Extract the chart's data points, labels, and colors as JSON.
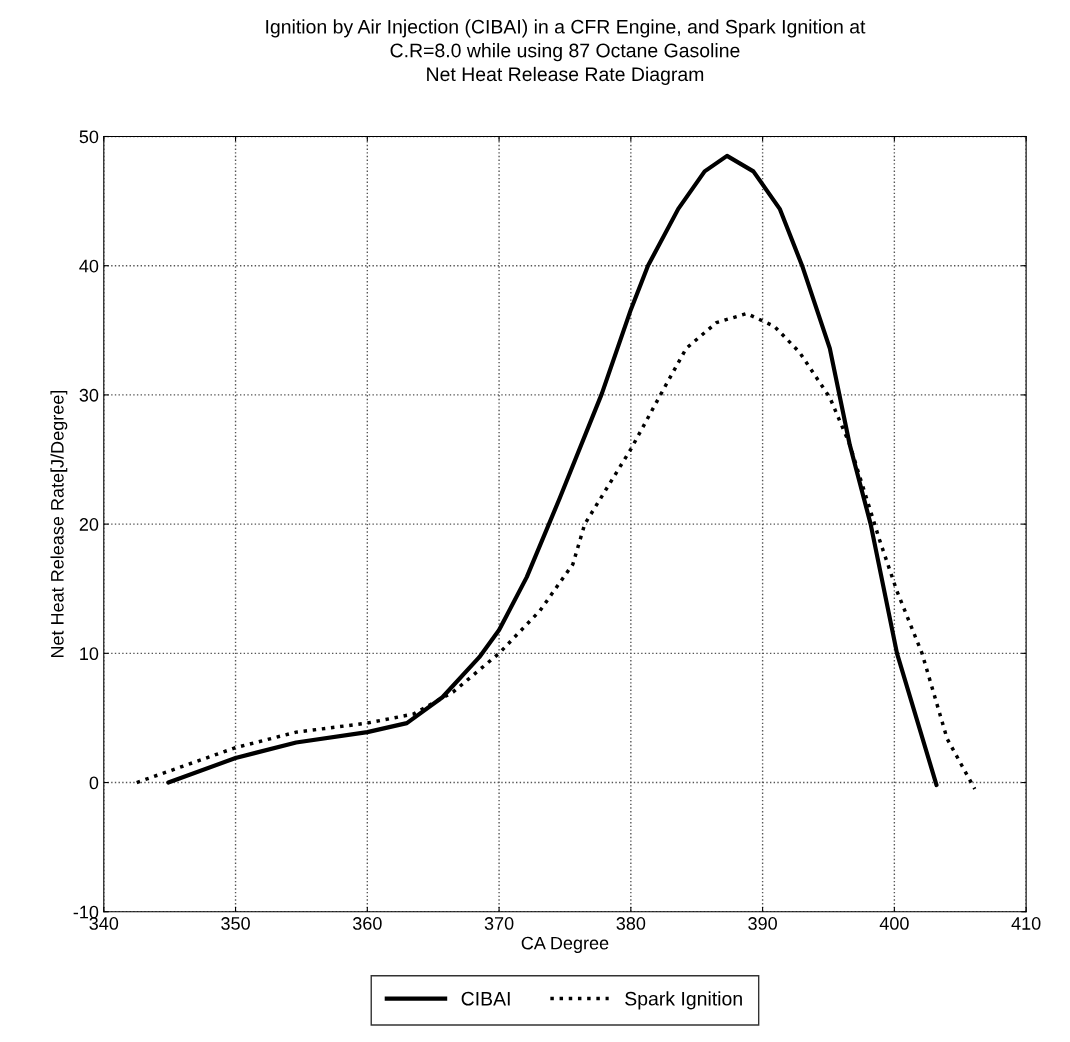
{
  "chart_data": {
    "type": "line",
    "title": "Ignition by Air Injection (CIBAI) in a CFR Engine, and Spark Ignition at\nC.R=8.0 while using 87 Octane Gasoline\nNet Heat Release Rate Diagram",
    "xlabel": "CA Degree",
    "ylabel": "Net Heat Release Rate[J/Degree]",
    "xlim": [
      340,
      410
    ],
    "xticks": [
      340,
      350,
      360,
      370,
      380,
      390,
      400,
      410
    ],
    "ylim": [
      -10,
      50
    ],
    "yticks": [
      -10,
      0,
      10,
      20,
      30,
      40,
      50
    ],
    "grid": true,
    "legend": "bottom",
    "marker": "none",
    "series": [
      {
        "name": "CIBAI",
        "color": "#000000",
        "line_style": "solid",
        "x": [
          344.9,
          350,
          354.6,
          360,
          363,
          365.7,
          368.5,
          370,
          372.1,
          374.6,
          377.8,
          380,
          381.3,
          383.6,
          385.6,
          387.3,
          389.3,
          391.3,
          393,
          395.1,
          396.6,
          398.2,
          400.2,
          403.2
        ],
        "values": [
          0,
          1.9,
          3.1,
          3.9,
          4.6,
          6.6,
          9.7,
          11.8,
          15.9,
          22.0,
          30.1,
          36.6,
          40,
          44.4,
          47.3,
          48.5,
          47.3,
          44.4,
          40,
          33.6,
          26.2,
          20,
          10,
          -0.2
        ]
      },
      {
        "name": "Spark Ignition",
        "color": "#000000",
        "line_style": "dotted",
        "x": [
          342.5,
          350,
          354.6,
          360,
          363.5,
          366.5,
          370,
          373.1,
          375.6,
          376.5,
          380,
          382.3,
          384.2,
          386.5,
          388.8,
          390.9,
          392.8,
          395.1,
          396.6,
          398.9,
          400.2,
          402.1,
          404,
          406.1
        ],
        "values": [
          0,
          2.7,
          3.9,
          4.6,
          5.3,
          7.0,
          10,
          13.3,
          16.9,
          20,
          25.8,
          30.1,
          33.6,
          35.6,
          36.3,
          35.3,
          33.3,
          29.8,
          26.2,
          18.7,
          14.8,
          10,
          3.4,
          -0.5
        ]
      }
    ]
  }
}
